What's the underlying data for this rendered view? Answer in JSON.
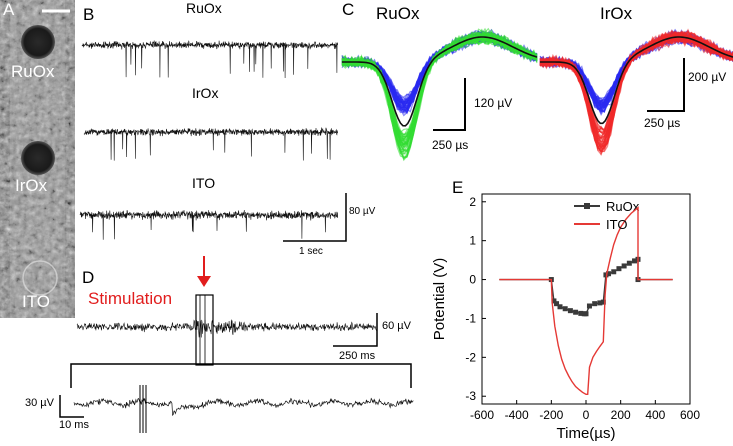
{
  "panels": {
    "A": {
      "letter": "A",
      "electrodes": [
        "RuOx",
        "IrOx",
        "ITO"
      ]
    },
    "B": {
      "letter": "B",
      "traces": [
        "RuOx",
        "IrOx",
        "ITO"
      ],
      "scale_voltage": "80 µV",
      "scale_time": "1 sec"
    },
    "C": {
      "letter": "C",
      "left_title": "RuOx",
      "right_title": "IrOx",
      "left_scale_voltage": "120 µV",
      "left_scale_time": "250 µs",
      "right_scale_voltage": "200 µV",
      "right_scale_time": "250 µs",
      "colors": {
        "blue": "#2a2af0",
        "green": "#33dd33",
        "red": "#f02a2a",
        "mean": "#111111"
      }
    },
    "D": {
      "letter": "D",
      "stimulation_label": "Stimulation",
      "top_scale_voltage": "60 µV",
      "top_scale_time": "250 ms",
      "bottom_scale_voltage": "30 µV",
      "bottom_scale_time": "10 ms",
      "arrow_color": "#e11d1d"
    },
    "E": {
      "letter": "E"
    }
  },
  "chart_data": {
    "type": "line",
    "xlabel": "Time(µs)",
    "ylabel": "Potential (V)",
    "xlim": [
      -600,
      600
    ],
    "ylim": [
      -3.2,
      2.2
    ],
    "xticks": [
      -600,
      -400,
      -200,
      0,
      200,
      400,
      600
    ],
    "yticks": [
      -3,
      -2,
      -1,
      0,
      1,
      2
    ],
    "legend_position": "top-right",
    "series": [
      {
        "name": "RuOx",
        "color": "#3a3a3a",
        "marker": "square",
        "x": [
          -500,
          -200,
          -185,
          -170,
          -150,
          -120,
          -90,
          -60,
          -30,
          -10,
          0,
          20,
          50,
          80,
          100,
          115,
          130,
          160,
          190,
          220,
          250,
          280,
          300,
          300,
          500
        ],
        "y": [
          0,
          0,
          -0.55,
          -0.62,
          -0.7,
          -0.75,
          -0.8,
          -0.84,
          -0.87,
          -0.88,
          -0.88,
          -0.68,
          -0.62,
          -0.6,
          -0.58,
          0.12,
          0.15,
          0.2,
          0.28,
          0.35,
          0.42,
          0.48,
          0.52,
          0,
          0
        ]
      },
      {
        "name": "ITO",
        "color": "#e53935",
        "x": [
          -500,
          -200,
          -195,
          -180,
          -160,
          -140,
          -120,
          -100,
          -80,
          -60,
          -40,
          -20,
          0,
          10,
          20,
          40,
          60,
          80,
          100,
          110,
          120,
          140,
          160,
          180,
          200,
          230,
          260,
          300,
          300,
          500
        ],
        "y": [
          0,
          0,
          -0.6,
          -1.2,
          -1.7,
          -2.05,
          -2.3,
          -2.48,
          -2.63,
          -2.75,
          -2.83,
          -2.9,
          -2.95,
          -2.95,
          -2.25,
          -2.0,
          -1.85,
          -1.72,
          -1.6,
          -0.4,
          0.15,
          0.55,
          0.9,
          1.15,
          1.35,
          1.55,
          1.7,
          1.85,
          0,
          0
        ]
      }
    ]
  }
}
